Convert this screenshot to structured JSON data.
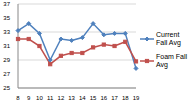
{
  "chart_data": {
    "type": "line",
    "categories": [
      "8",
      "9",
      "10",
      "11",
      "12",
      "13",
      "14",
      "15",
      "16",
      "17",
      "18",
      "19"
    ],
    "series": [
      {
        "name": "Current Fall Avg",
        "color": "#4f81bd",
        "marker": "diamond",
        "values": [
          33.2,
          34.2,
          32.8,
          29.0,
          32.0,
          31.8,
          32.2,
          34.2,
          32.6,
          32.8,
          32.8,
          27.8
        ]
      },
      {
        "name": "Foam Fall Avg",
        "color": "#c0504d",
        "marker": "square",
        "values": [
          32.0,
          32.0,
          31.0,
          28.4,
          29.6,
          30.0,
          30.0,
          30.8,
          31.2,
          31.0,
          31.6,
          28.8
        ]
      }
    ],
    "ylim": [
      25,
      37
    ],
    "yticks": [
      25,
      27,
      29,
      31,
      33,
      35,
      37
    ],
    "grid": true,
    "legend": "right"
  }
}
